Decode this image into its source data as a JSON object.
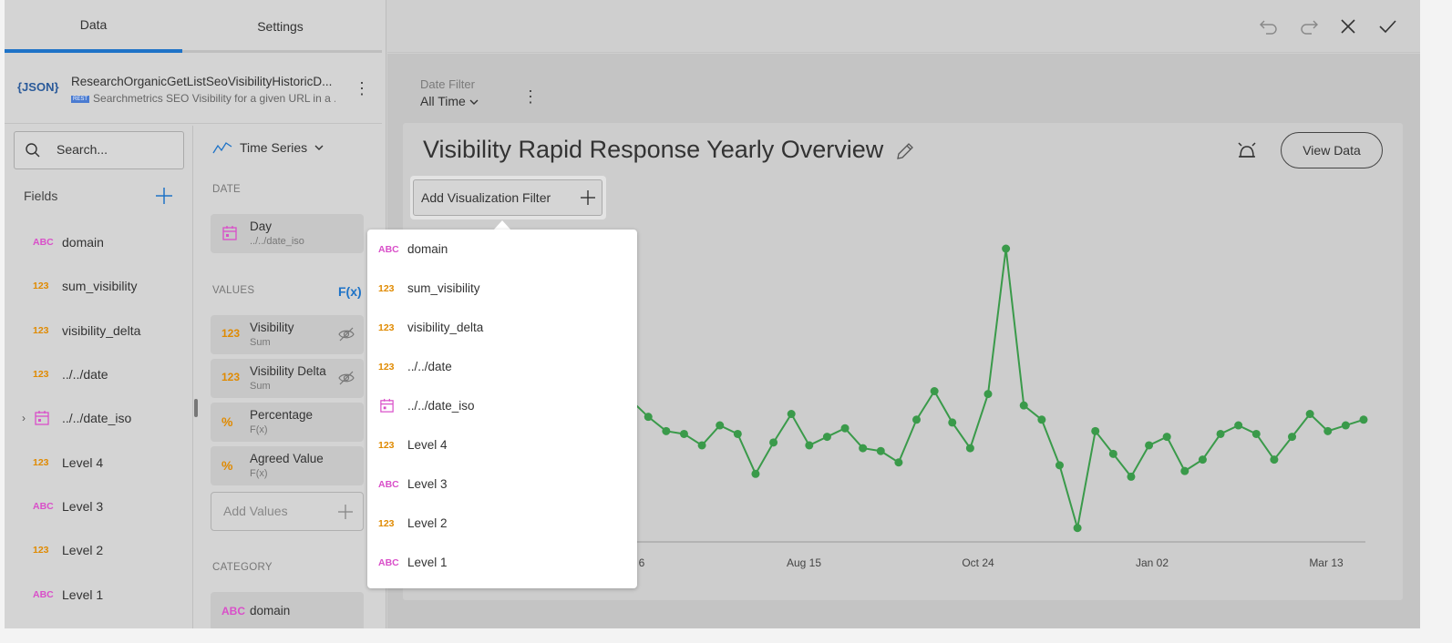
{
  "tabs": {
    "data": "Data",
    "settings": "Settings"
  },
  "datasource": {
    "icon_text": "{JSON}",
    "title": "ResearchOrganicGetListSeoVisibilityHistoricD...",
    "badge": "REST",
    "subtitle": "Searchmetrics SEO Visibility for a given URL in a ..."
  },
  "search": {
    "placeholder": "Search..."
  },
  "fields": {
    "heading": "Fields",
    "items": [
      {
        "type": "ABC",
        "label": "domain"
      },
      {
        "type": "123",
        "label": "sum_visibility"
      },
      {
        "type": "123",
        "label": "visibility_delta"
      },
      {
        "type": "123",
        "label": "../../date"
      },
      {
        "type": "date",
        "label": "../../date_iso"
      },
      {
        "type": "123",
        "label": "Level 4"
      },
      {
        "type": "ABC",
        "label": "Level 3"
      },
      {
        "type": "123",
        "label": "Level 2"
      },
      {
        "type": "ABC",
        "label": "Level 1"
      }
    ]
  },
  "editor": {
    "viz_type": "Time Series",
    "date_section": "DATE",
    "date_pill": {
      "title": "Day",
      "sub": "../../date_iso"
    },
    "values_section": "VALUES",
    "fx": "F(x)",
    "values": [
      {
        "icon": "123",
        "title": "Visibility",
        "sub": "Sum"
      },
      {
        "icon": "123",
        "title": "Visibility Delta",
        "sub": "Sum"
      },
      {
        "icon": "%",
        "title": "Percentage",
        "sub": "F(x)"
      },
      {
        "icon": "%",
        "title": "Agreed Value",
        "sub": "F(x)"
      }
    ],
    "add_values": "Add Values",
    "category_section": "CATEGORY",
    "category_pill": {
      "icon": "ABC",
      "title": "domain"
    }
  },
  "date_filter": {
    "label": "Date Filter",
    "value": "All Time"
  },
  "card": {
    "title": "Visibility Rapid Response Yearly Overview",
    "view_data": "View Data",
    "add_filter": "Add Visualization Filter"
  },
  "dropdown": [
    {
      "type": "ABC",
      "label": "domain"
    },
    {
      "type": "123",
      "label": "sum_visibility"
    },
    {
      "type": "123",
      "label": "visibility_delta"
    },
    {
      "type": "123",
      "label": "../../date"
    },
    {
      "type": "date",
      "label": "../../date_iso"
    },
    {
      "type": "123",
      "label": "Level 4"
    },
    {
      "type": "ABC",
      "label": "Level 3"
    },
    {
      "type": "123",
      "label": "Level 2"
    },
    {
      "type": "ABC",
      "label": "Level 1"
    }
  ],
  "colors": {
    "accent": "#1e73c7",
    "line": "#3a9a4a",
    "abc": "#d94fc9",
    "num": "#e08a00"
  },
  "chart_data": {
    "type": "line",
    "x_tick_labels": [
      "6",
      "Aug 15",
      "Oct 24",
      "Jan 02",
      "Mar 13"
    ],
    "grid": false,
    "legend": "none",
    "series": [
      {
        "values": [
          0.42,
          0.47,
          0.41,
          0.36,
          0.35,
          0.31,
          0.38,
          0.35,
          0.21,
          0.32,
          0.42,
          0.31,
          0.34,
          0.37,
          0.3,
          0.29,
          0.25,
          0.4,
          0.5,
          0.39,
          0.3,
          0.49,
          1.0,
          0.45,
          0.4,
          0.24,
          0.02,
          0.36,
          0.28,
          0.2,
          0.31,
          0.34,
          0.22,
          0.26,
          0.35,
          0.38,
          0.35,
          0.26,
          0.34,
          0.42,
          0.36,
          0.38,
          0.4
        ]
      }
    ]
  }
}
